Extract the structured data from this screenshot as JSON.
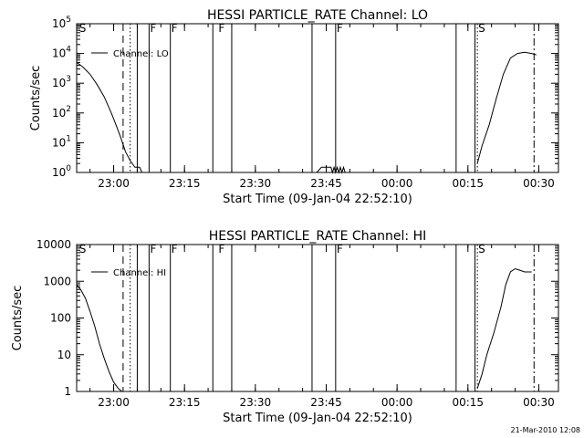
{
  "chart_data": [
    {
      "type": "line",
      "title": "HESSI PARTICLE_RATE Channel: LO",
      "xlabel": "Start Time (09-Jan-04 22:52:10)",
      "ylabel": "Counts/sec",
      "yscale": "log",
      "ylim": [
        1,
        100000
      ],
      "xlim_minutes_after_start": [
        0,
        102
      ],
      "x_tick_labels": [
        "23:00",
        "23:15",
        "23:30",
        "23:45",
        "00:00",
        "00:15",
        "00:30"
      ],
      "y_tick_labels": [
        "10^0",
        "10^1",
        "10^2",
        "10^3",
        "10^4",
        "10^5"
      ],
      "legend": {
        "position": "top-left",
        "entries": [
          "Channel: LO"
        ]
      },
      "series": [
        {
          "name": "Channel: LO",
          "segments": [
            {
              "x": [
                "22:52:10",
                "22:53:30",
                "22:55:00",
                "22:56:30",
                "22:58:00",
                "22:59:30",
                "23:00:30",
                "23:01:30",
                "23:02:30",
                "23:03:30",
                "23:04:30",
                "23:05:30",
                "23:06:00",
                "23:07:00",
                "23:08:00"
              ],
              "y": [
                5000,
                3500,
                2000,
                900,
                350,
                100,
                40,
                15,
                5,
                2.5,
                1.5,
                1.5,
                1,
                1,
                1
              ]
            },
            {
              "x": [
                "23:43:00",
                "23:44:00",
                "23:46:00",
                "23:46:20",
                "23:46:40",
                "23:47:00",
                "23:47:20",
                "23:47:40",
                "23:48:00",
                "23:48:20",
                "23:48:40",
                "23:49:00"
              ],
              "y": [
                1,
                1.5,
                1.5,
                1,
                1.5,
                1,
                1.5,
                1,
                1.5,
                1,
                1.5,
                1
              ]
            },
            {
              "x": [
                "00:17:00",
                "00:18:00",
                "00:19:30",
                "00:21:00",
                "00:22:30",
                "00:24:00",
                "00:25:30",
                "00:27:00",
                "00:28:30",
                "00:29:30"
              ],
              "y": [
                2,
                8,
                40,
                300,
                2000,
                7000,
                10000,
                11000,
                10000,
                9000
              ]
            }
          ]
        }
      ],
      "markers": [
        {
          "style": "dashed",
          "time": "23:02:00"
        },
        {
          "style": "dotted",
          "time": "23:03:30"
        },
        {
          "style": "dotted",
          "time": "00:17:00"
        },
        {
          "style": "dash-dot",
          "time": "00:29:00"
        }
      ],
      "gap_boundaries": [
        "23:05:00",
        "23:07:30",
        "23:12:00",
        "23:21:00",
        "23:25:00",
        "23:42:00",
        "23:47:00",
        "00:12:30",
        "00:16:30"
      ],
      "flags": [
        {
          "label": "F",
          "time": "23:07:30"
        },
        {
          "label": "F",
          "time": "23:12:00"
        },
        {
          "label": "F",
          "time": "23:22:00"
        },
        {
          "label": "F",
          "time": "23:47:00"
        },
        {
          "label": "S",
          "time": "22:52:30"
        },
        {
          "label": "S",
          "time": "00:17:00"
        }
      ]
    },
    {
      "type": "line",
      "title": "HESSI PARTICLE_RATE Channel: HI",
      "xlabel": "Start Time (09-Jan-04 22:52:10)",
      "ylabel": "Counts/sec",
      "yscale": "log",
      "ylim": [
        1,
        10000
      ],
      "xlim_minutes_after_start": [
        0,
        102
      ],
      "x_tick_labels": [
        "23:00",
        "23:15",
        "23:30",
        "23:45",
        "00:00",
        "00:15",
        "00:30"
      ],
      "y_tick_labels": [
        "1",
        "10",
        "100",
        "1000",
        "10000"
      ],
      "legend": {
        "position": "top-left",
        "entries": [
          "Channel: HI"
        ]
      },
      "series": [
        {
          "name": "Channel: HI",
          "segments": [
            {
              "x": [
                "22:52:10",
                "22:53:00",
                "22:54:00",
                "22:55:00",
                "22:56:00",
                "22:57:00",
                "22:58:00",
                "22:59:00",
                "23:00:00",
                "23:01:00",
                "23:01:45"
              ],
              "y": [
                800,
                600,
                350,
                150,
                60,
                20,
                8,
                3.5,
                1.8,
                1.2,
                1
              ]
            },
            {
              "x": [
                "00:17:00",
                "00:18:00",
                "00:19:00",
                "00:20:30",
                "00:22:00",
                "00:23:00",
                "00:24:00",
                "00:25:00",
                "00:26:00",
                "00:27:00",
                "00:28:30"
              ],
              "y": [
                1.2,
                3,
                10,
                40,
                200,
                800,
                1800,
                2200,
                2000,
                1800,
                1800
              ]
            }
          ]
        }
      ],
      "markers": [
        {
          "style": "dashed",
          "time": "23:02:00"
        },
        {
          "style": "dotted",
          "time": "23:03:30"
        },
        {
          "style": "dotted",
          "time": "00:17:00"
        },
        {
          "style": "dash-dot",
          "time": "00:29:00"
        }
      ],
      "gap_boundaries": [
        "23:05:00",
        "23:07:30",
        "23:12:00",
        "23:21:00",
        "23:25:00",
        "23:42:00",
        "23:47:00",
        "00:12:30",
        "00:16:30"
      ],
      "flags": [
        {
          "label": "F",
          "time": "23:07:30"
        },
        {
          "label": "F",
          "time": "23:12:00"
        },
        {
          "label": "F",
          "time": "23:22:00"
        },
        {
          "label": "F",
          "time": "23:47:00"
        },
        {
          "label": "S",
          "time": "22:52:30"
        },
        {
          "label": "S",
          "time": "00:17:00"
        }
      ]
    }
  ],
  "footer": {
    "timestamp": "21-Mar-2010 12:08"
  }
}
